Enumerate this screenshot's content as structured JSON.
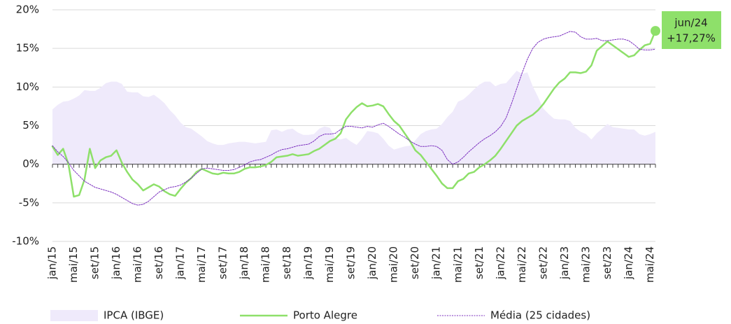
{
  "chart_data": {
    "type": "line",
    "categories": [
      "jan/15",
      null,
      null,
      null,
      "mai/15",
      null,
      null,
      null,
      "set/15",
      null,
      null,
      null,
      "jan/16",
      null,
      null,
      null,
      "mai/16",
      null,
      null,
      null,
      "set/16",
      null,
      null,
      null,
      "jan/17",
      null,
      null,
      null,
      "mai/17",
      null,
      null,
      null,
      "set/17",
      null,
      null,
      null,
      "jan/18",
      null,
      null,
      null,
      "mai/18",
      null,
      null,
      null,
      "set/18",
      null,
      null,
      null,
      "jan/19",
      null,
      null,
      null,
      "mai/19",
      null,
      null,
      null,
      "set/19",
      null,
      null,
      null,
      "jan/20",
      null,
      null,
      null,
      "mai/20",
      null,
      null,
      null,
      "set/20",
      null,
      null,
      null,
      "jan/21",
      null,
      null,
      null,
      "mai/21",
      null,
      null,
      null,
      "set/21",
      null,
      null,
      null,
      "jan/22",
      null,
      null,
      null,
      "mai/22",
      null,
      null,
      null,
      "set/22",
      null,
      null,
      null,
      "jan/23",
      null,
      null,
      null,
      "mai/23",
      null,
      null,
      null,
      "set/23",
      null,
      null,
      null,
      "jan/24",
      null,
      null,
      null,
      "mai/24",
      null
    ],
    "series": [
      {
        "name": "IPCA (IBGE)",
        "style": "area",
        "color": "#efeafb",
        "values": [
          7.1,
          7.7,
          8.1,
          8.2,
          8.5,
          8.9,
          9.6,
          9.5,
          9.5,
          9.9,
          10.5,
          10.7,
          10.7,
          10.4,
          9.4,
          9.3,
          9.3,
          8.8,
          8.7,
          9.0,
          8.5,
          7.9,
          7.0,
          6.3,
          5.4,
          4.8,
          4.6,
          4.1,
          3.6,
          3.0,
          2.7,
          2.5,
          2.5,
          2.7,
          2.8,
          2.9,
          2.9,
          2.8,
          2.7,
          2.8,
          2.9,
          4.4,
          4.5,
          4.2,
          4.5,
          4.6,
          4.1,
          3.8,
          3.8,
          3.9,
          4.6,
          4.9,
          4.7,
          3.4,
          3.2,
          3.4,
          2.9,
          2.5,
          3.3,
          4.3,
          4.2,
          4.0,
          3.3,
          2.4,
          1.9,
          2.1,
          2.3,
          2.4,
          3.1,
          3.9,
          4.3,
          4.5,
          4.6,
          5.2,
          6.1,
          6.8,
          8.1,
          8.4,
          9.0,
          9.7,
          10.3,
          10.7,
          10.7,
          10.1,
          10.4,
          10.5,
          11.3,
          12.1,
          11.7,
          11.9,
          10.1,
          8.7,
          7.2,
          6.5,
          5.9,
          5.8,
          5.8,
          5.6,
          4.7,
          4.2,
          3.9,
          3.2,
          4.0,
          4.6,
          5.2,
          4.8,
          4.7,
          4.6,
          4.5,
          4.5,
          3.9,
          3.7,
          3.9,
          4.2
        ]
      },
      {
        "name": "Porto Alegre",
        "style": "solid",
        "color": "#8ee06a",
        "values": [
          2.3,
          1.2,
          2.0,
          0.0,
          -4.2,
          -4.0,
          -2.0,
          2.0,
          -0.5,
          0.5,
          0.9,
          1.1,
          1.8,
          0.2,
          -1.0,
          -2.0,
          -2.6,
          -3.4,
          -3.0,
          -2.6,
          -2.9,
          -3.5,
          -3.9,
          -4.1,
          -3.2,
          -2.4,
          -1.8,
          -1.0,
          -0.6,
          -0.9,
          -1.2,
          -1.3,
          -1.1,
          -1.2,
          -1.2,
          -1.0,
          -0.6,
          -0.4,
          -0.4,
          -0.3,
          -0.1,
          0.3,
          0.9,
          1.0,
          1.1,
          1.3,
          1.1,
          1.2,
          1.3,
          1.7,
          2.0,
          2.5,
          3.0,
          3.3,
          4.0,
          5.8,
          6.7,
          7.4,
          7.9,
          7.5,
          7.6,
          7.8,
          7.5,
          6.5,
          5.6,
          5.0,
          4.0,
          3.0,
          1.8,
          1.2,
          0.3,
          -0.6,
          -1.5,
          -2.5,
          -3.1,
          -3.1,
          -2.2,
          -1.9,
          -1.2,
          -1.0,
          -0.4,
          0.0,
          0.5,
          1.1,
          2.0,
          3.0,
          4.0,
          5.0,
          5.6,
          6.0,
          6.4,
          7.0,
          7.8,
          8.8,
          9.8,
          10.6,
          11.1,
          11.9,
          11.9,
          11.8,
          12.0,
          12.8,
          14.7,
          15.3,
          15.9,
          15.4,
          14.9,
          14.4,
          13.9,
          14.1,
          14.8,
          15.4,
          15.6,
          17.27
        ]
      },
      {
        "name": "Média (25 cidades)",
        "style": "dotted",
        "color": "#7b2fbf",
        "values": [
          2.4,
          1.6,
          1.0,
          0.2,
          -0.8,
          -1.5,
          -2.2,
          -2.6,
          -3.0,
          -3.2,
          -3.4,
          -3.6,
          -3.9,
          -4.3,
          -4.7,
          -5.1,
          -5.3,
          -5.2,
          -4.8,
          -4.2,
          -3.6,
          -3.3,
          -3.0,
          -2.9,
          -2.7,
          -2.3,
          -1.8,
          -1.2,
          -0.6,
          -0.5,
          -0.6,
          -0.7,
          -0.8,
          -0.8,
          -0.7,
          -0.4,
          -0.1,
          0.3,
          0.5,
          0.6,
          0.9,
          1.2,
          1.6,
          1.9,
          2.0,
          2.2,
          2.4,
          2.5,
          2.6,
          3.0,
          3.6,
          3.9,
          3.9,
          4.0,
          4.5,
          4.9,
          4.9,
          4.8,
          4.7,
          4.9,
          4.8,
          5.1,
          5.3,
          4.9,
          4.4,
          3.9,
          3.5,
          3.0,
          2.6,
          2.3,
          2.3,
          2.4,
          2.3,
          1.8,
          0.6,
          0.0,
          0.3,
          0.9,
          1.6,
          2.2,
          2.8,
          3.3,
          3.7,
          4.2,
          4.9,
          6.0,
          7.8,
          9.8,
          11.8,
          13.6,
          15.0,
          15.8,
          16.2,
          16.4,
          16.5,
          16.6,
          16.9,
          17.2,
          17.1,
          16.5,
          16.2,
          16.2,
          16.3,
          16.0,
          16.0,
          16.1,
          16.2,
          16.2,
          16.0,
          15.5,
          14.9,
          14.8,
          14.8,
          14.9
        ]
      }
    ],
    "ylim": [
      -10,
      20
    ],
    "yticks": [
      {
        "value": -10,
        "label": "-10%"
      },
      {
        "value": -5,
        "label": "-5%"
      },
      {
        "value": 0,
        "label": "0%"
      },
      {
        "value": 5,
        "label": "5%"
      },
      {
        "value": 10,
        "label": "10%"
      },
      {
        "value": 15,
        "label": "15%"
      },
      {
        "value": 20,
        "label": "20%"
      }
    ],
    "grid": true,
    "legend": "bottom",
    "annotation": {
      "date": "jun/24",
      "label": "+17,27%",
      "color": "#8ee06a"
    }
  }
}
